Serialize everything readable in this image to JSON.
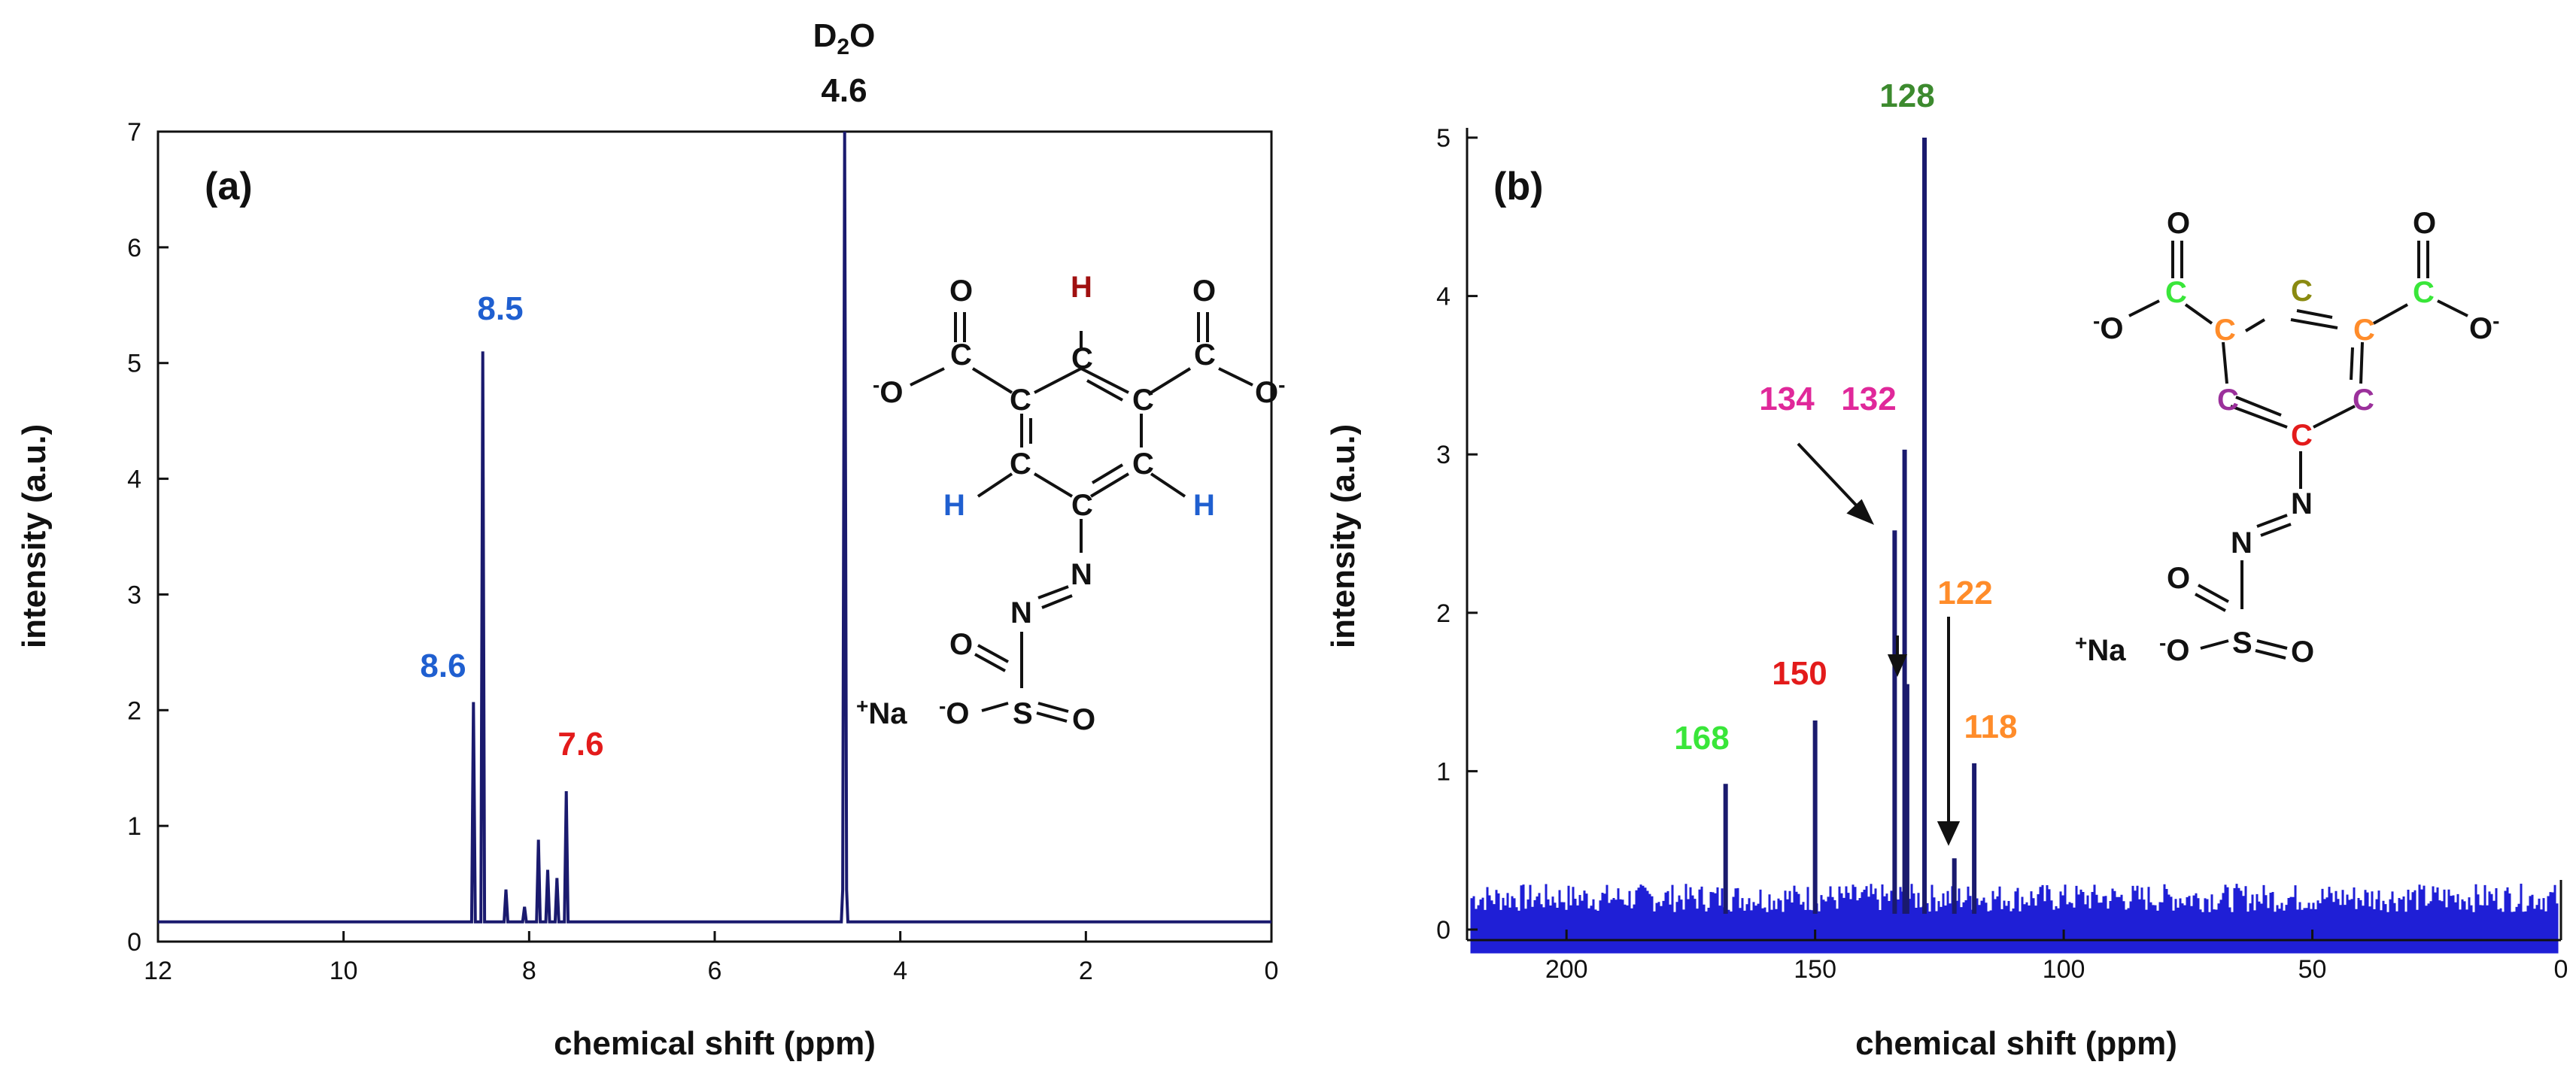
{
  "colors": {
    "spectrum": "#1a1a6e",
    "c13_fill": "#1f1fd6",
    "blue": "#1f5fd0",
    "red": "#e31b1b",
    "darkred": "#a01010",
    "green": "#39e639",
    "darkgreen": "#3c8a2e",
    "magenta": "#e0289a",
    "orange": "#ff8c2a",
    "olive": "#8a8a10",
    "purple": "#9b309b",
    "black": "#111111"
  },
  "chart_data": [
    {
      "type": "line",
      "panel": "(a)",
      "title": "",
      "xlabel": "chemical shift (ppm)",
      "ylabel": "intensity (a.u.)",
      "xlim": [
        12,
        0
      ],
      "ylim": [
        0,
        7
      ],
      "xticks": [
        "12",
        "10",
        "8",
        "6",
        "4",
        "2",
        "0"
      ],
      "yticks": [
        "0",
        "1",
        "2",
        "3",
        "4",
        "5",
        "6",
        "7"
      ],
      "baseline": 0.17,
      "peaks": [
        {
          "x": 8.6,
          "y": 2.07
        },
        {
          "x": 8.5,
          "y": 5.1
        },
        {
          "x": 8.25,
          "y": 0.45
        },
        {
          "x": 8.05,
          "y": 0.3
        },
        {
          "x": 7.9,
          "y": 0.88
        },
        {
          "x": 7.8,
          "y": 0.62
        },
        {
          "x": 7.7,
          "y": 0.55
        },
        {
          "x": 7.6,
          "y": 1.3
        },
        {
          "x": 4.6,
          "y": 7.0
        }
      ],
      "annotations": [
        {
          "text": "8.6",
          "x": 8.6,
          "color": "blue"
        },
        {
          "text": "8.5",
          "x": 8.5,
          "color": "blue"
        },
        {
          "text": "7.6",
          "x": 7.6,
          "color": "red"
        },
        {
          "text": "4.6",
          "x": 4.6,
          "color": "black"
        }
      ],
      "solvent": {
        "pre": "D",
        "sub": "2",
        "post": "O"
      }
    },
    {
      "type": "line",
      "panel": "(b)",
      "title": "",
      "xlabel": "chemical shift (ppm)",
      "ylabel": "intensity (a.u.)",
      "xlim": [
        220,
        0
      ],
      "ylim": [
        0,
        5
      ],
      "xticks": [
        "200",
        "150",
        "100",
        "50",
        "0"
      ],
      "yticks": [
        "0",
        "1",
        "2",
        "3",
        "4",
        "5"
      ],
      "noise_level": 0.2,
      "peaks": [
        {
          "x": 168,
          "y": 0.92
        },
        {
          "x": 150,
          "y": 1.32
        },
        {
          "x": 134,
          "y": 2.52
        },
        {
          "x": 132,
          "y": 3.03
        },
        {
          "x": 131.5,
          "y": 1.55
        },
        {
          "x": 128,
          "y": 5.0
        },
        {
          "x": 122,
          "y": 0.45
        },
        {
          "x": 118,
          "y": 1.05
        }
      ],
      "annotations": [
        {
          "text": "168",
          "x": 168,
          "color": "green"
        },
        {
          "text": "150",
          "x": 150,
          "color": "red"
        },
        {
          "text": "134",
          "x": 134,
          "color": "magenta"
        },
        {
          "text": "132",
          "x": 132,
          "color": "magenta"
        },
        {
          "text": "128",
          "x": 128,
          "color": "darkgreen"
        },
        {
          "text": "122",
          "x": 122,
          "color": "orange"
        },
        {
          "text": "118",
          "x": 118,
          "color": "orange"
        }
      ]
    }
  ],
  "molecule_a": {
    "O_top_left": "O",
    "O_top_right": "O",
    "O_minus_left": "O",
    "O_minus_right": "O",
    "C_carboxyl_left": "C",
    "C_carboxyl_right": "C",
    "C_ring_top": "C",
    "C_ring_left_upper": "C",
    "C_ring_right_upper": "C",
    "C_ring_left_lower": "C",
    "C_ring_right_lower": "C",
    "C_ring_bottom": "C",
    "H_top": "H",
    "H_left": "H",
    "H_right": "H",
    "N1": "N",
    "N2": "N",
    "S": "S",
    "O_s1": "O",
    "O_s2": "O",
    "O_s3": "O",
    "minus": "-",
    "plus": "+",
    "Na": "Na"
  },
  "molecule_b": {
    "O_top_left": "O",
    "O_top_right": "O",
    "O_minus_left": "O",
    "O_minus_right": "O",
    "C_carboxyl_left": "C",
    "C_carboxyl_right": "C",
    "C_ring_top": "C",
    "C_ring_left_upper": "C",
    "C_ring_right_upper": "C",
    "C_ring_left_lower": "C",
    "C_ring_right_lower": "C",
    "C_ring_bottom": "C",
    "N1": "N",
    "N2": "N",
    "S": "S",
    "O_s1": "O",
    "O_s2": "O",
    "O_s3": "O",
    "minus": "-",
    "plus": "+",
    "Na": "Na"
  }
}
